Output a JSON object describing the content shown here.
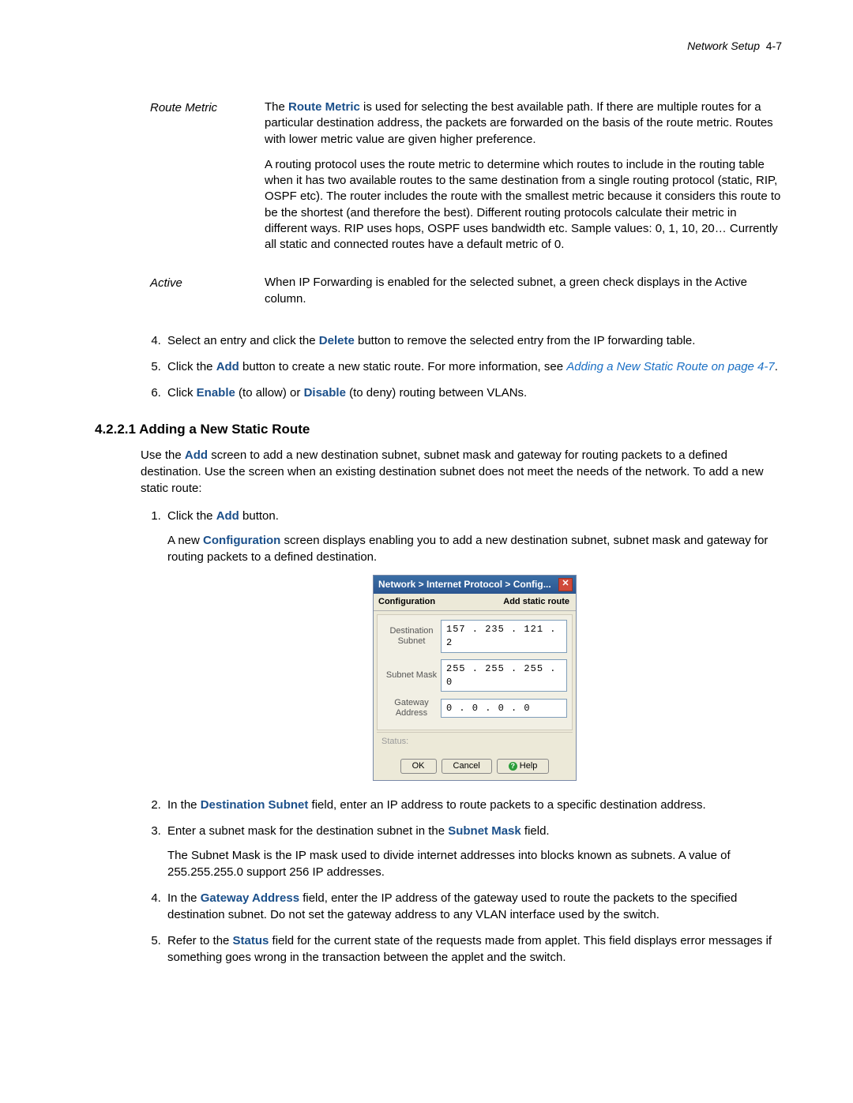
{
  "header": {
    "section": "Network Setup",
    "pageref": "4-7"
  },
  "defs": {
    "routeMetric": {
      "term": "Route Metric",
      "boldLabel": "Route Metric",
      "p1a": "The ",
      "p1b": " is used for selecting the best available path. If there are multiple routes for a particular destination address, the packets are forwarded on the basis of the route metric. Routes with lower metric value are given higher preference.",
      "p2": "A routing protocol uses the route metric to determine which routes to include in the routing table when it has two available routes to the same destination from a single routing protocol (static, RIP, OSPF etc). The router includes the route with the smallest metric because it considers this route to be the shortest (and therefore the best). Different routing protocols calculate their metric in different ways. RIP uses hops, OSPF uses bandwidth etc. Sample values: 0, 1, 10, 20… Currently all static and connected routes have a default metric of 0."
    },
    "active": {
      "term": "Active",
      "p1": "When IP Forwarding is enabled for the selected subnet, a green check displays in the Active column."
    }
  },
  "steps1": {
    "s4a": "Select an entry and click the ",
    "s4b": "Delete",
    "s4c": " button to remove the selected entry from the IP forwarding table.",
    "s5a": "Click the ",
    "s5b": "Add",
    "s5c": " button to create a new static route. For more information, see ",
    "s5link": "Adding a New Static Route on page 4-7",
    "s5d": ".",
    "s6a": "Click ",
    "s6b": "Enable",
    "s6c": " (to allow) or ",
    "s6d": "Disable",
    "s6e": " (to deny) routing between VLANs."
  },
  "sectionHeading": "4.2.2.1  Adding a New Static Route",
  "intro": {
    "a": "Use the ",
    "b": "Add",
    "c": " screen to add a new destination subnet, subnet mask and gateway for routing packets to a defined destination. Use the screen when an existing destination subnet does not meet the needs of the network. To add a new static route:"
  },
  "steps2": {
    "s1a": "Click the ",
    "s1b": "Add",
    "s1c": " button.",
    "s1cont_a": "A new ",
    "s1cont_b": "Configuration",
    "s1cont_c": " screen displays enabling you to add a new destination subnet, subnet mask and gateway for routing packets to a defined destination.",
    "s2a": "In the ",
    "s2b": "Destination Subnet",
    "s2c": " field, enter an IP address to route packets to a specific destination address.",
    "s3a": "Enter a subnet mask for the destination subnet in the ",
    "s3b": "Subnet Mask",
    "s3c": " field.",
    "s3cont": "The Subnet Mask is the IP mask used to divide internet addresses into blocks known as subnets. A value of 255.255.255.0 support 256 IP addresses.",
    "s4a": "In the ",
    "s4b": "Gateway Address",
    "s4c": " field, enter the IP address of the gateway used to route the packets to the specified destination subnet. Do not set the gateway address to any VLAN interface used by the switch.",
    "s5a": "Refer to the ",
    "s5b": "Status",
    "s5c": " field for the current state of the requests made from applet. This field displays error messages if something goes wrong in the transaction between the applet and the switch."
  },
  "dialog": {
    "title": "Network > Internet Protocol > Config...",
    "subLeft": "Configuration",
    "subRight": "Add static route",
    "rows": {
      "dest": {
        "label": "Destination Subnet",
        "value": "157 . 235 . 121 .  2"
      },
      "mask": {
        "label": "Subnet Mask",
        "value": "255 . 255 . 255 .  0"
      },
      "gw": {
        "label": "Gateway Address",
        "value": "  0 .   0 .   0 .  0"
      }
    },
    "status": "Status:",
    "buttons": {
      "ok": "OK",
      "cancel": "Cancel",
      "help": "Help"
    }
  }
}
